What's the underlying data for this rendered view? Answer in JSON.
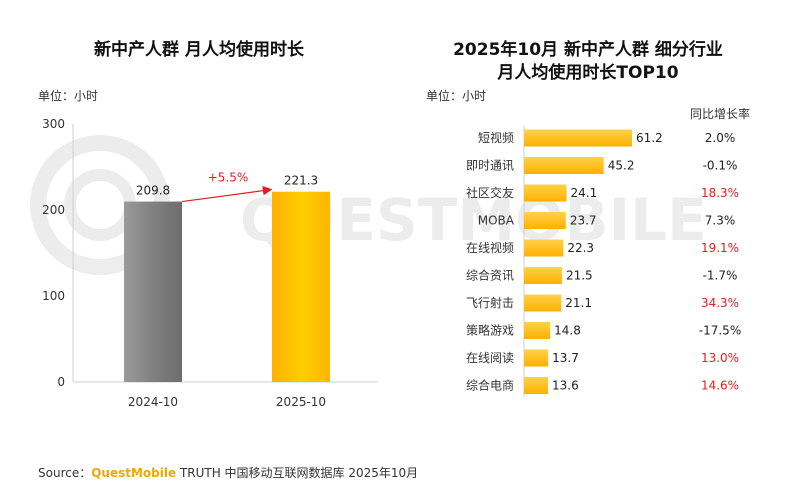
{
  "left_chart": {
    "title": "新中产人群 月人均使用时长",
    "unit_label": "单位：小时",
    "growth_label": "+5.5%"
  },
  "right_chart": {
    "title_line1": "2025年10月 新中产人群 细分行业",
    "title_line2": "月人均使用时长TOP10",
    "unit_label": "单位：小时",
    "yoy_header": "同比增长率"
  },
  "watermark": "QUESTMOBILE",
  "footer": {
    "prefix": "Source：",
    "brand": "QuestMobile",
    "rest": " TRUTH 中国移动互联网数据库 2025年10月"
  },
  "colors": {
    "bar_2024": "#8c8c8c",
    "bar_2025": "#ffc000",
    "industry_bar": "#ffbf00",
    "growth_arrow": "#e02020",
    "negative_or_small_yoy": "#222222",
    "high_yoy": "#e02020"
  },
  "chart_data": [
    {
      "type": "bar",
      "title": "新中产人群 月人均使用时长",
      "ylabel": "单位：小时",
      "categories": [
        "2024-10",
        "2025-10"
      ],
      "values": [
        209.8,
        221.3
      ],
      "value_labels": [
        "209.8",
        "221.3"
      ],
      "ylim": [
        0,
        300
      ],
      "yticks": [
        0,
        100,
        200,
        300
      ],
      "annotation": "+5.5%"
    },
    {
      "type": "bar",
      "orientation": "horizontal",
      "title": "2025年10月 新中产人群 细分行业 月人均使用时长TOP10",
      "ylabel": "单位：小时",
      "categories": [
        "短视频",
        "即时通讯",
        "社区交友",
        "MOBA",
        "在线视频",
        "综合资讯",
        "飞行射击",
        "策略游戏",
        "在线阅读",
        "综合电商"
      ],
      "values": [
        61.2,
        45.2,
        24.1,
        23.7,
        22.3,
        21.5,
        21.1,
        14.8,
        13.7,
        13.6
      ],
      "value_labels": [
        "61.2",
        "45.2",
        "24.1",
        "23.7",
        "22.3",
        "21.5",
        "21.1",
        "14.8",
        "13.7",
        "13.6"
      ],
      "yoy_growth": [
        "2.0%",
        "-0.1%",
        "18.3%",
        "7.3%",
        "19.1%",
        "-1.7%",
        "34.3%",
        "-17.5%",
        "13.0%",
        "14.6%"
      ],
      "yoy_highlight": [
        false,
        false,
        true,
        false,
        true,
        false,
        true,
        false,
        true,
        true
      ]
    }
  ]
}
